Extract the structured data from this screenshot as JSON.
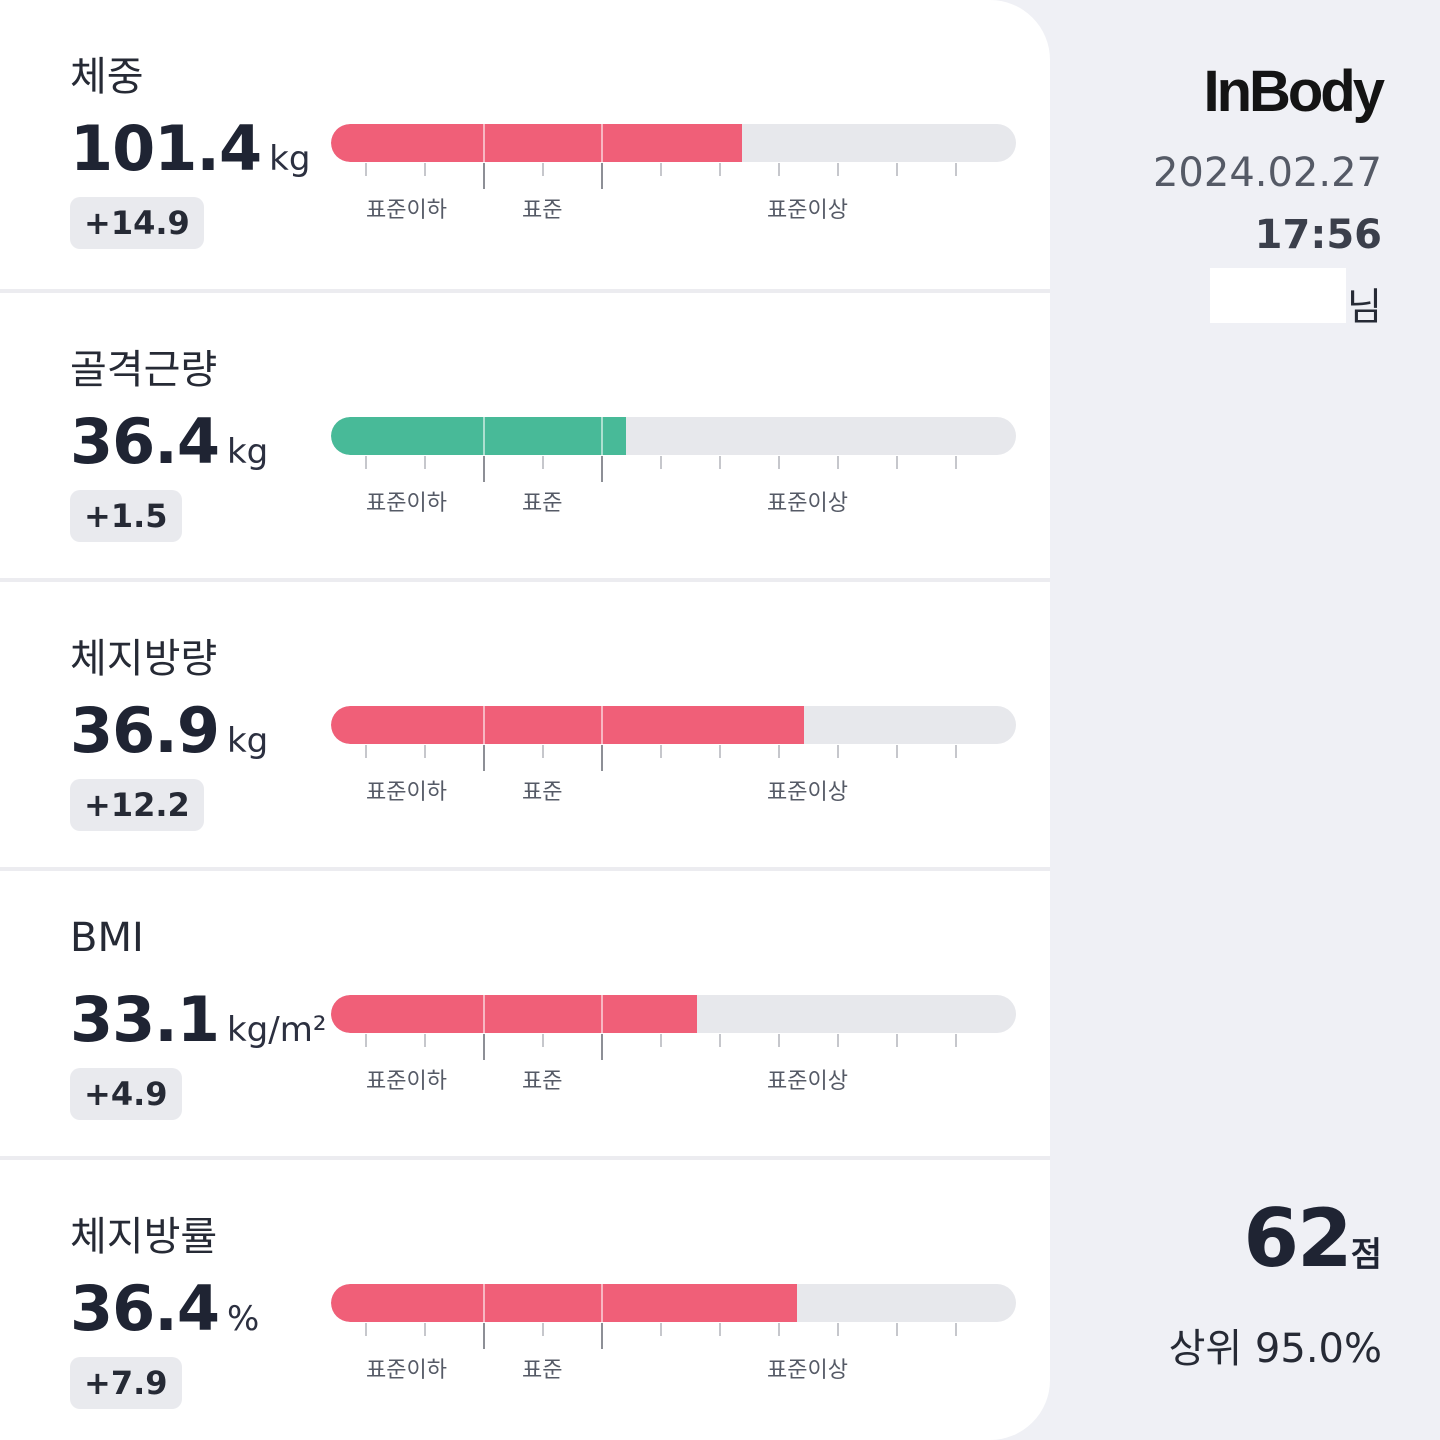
{
  "colors": {
    "over": "#f05f78",
    "normal": "#48ba98",
    "track": "#e7e8ec"
  },
  "scale": {
    "zones": [
      "표준이하",
      "표준",
      "표준이상"
    ]
  },
  "metrics": [
    {
      "title": "체중",
      "value": "101.4",
      "unit": "kg",
      "delta": "+14.9",
      "level": 0.6,
      "status": "over"
    },
    {
      "title": "골격근량",
      "value": "36.4",
      "unit": "kg",
      "delta": "+1.5",
      "level": 0.43,
      "status": "normal"
    },
    {
      "title": "체지방량",
      "value": "36.9",
      "unit": "kg",
      "delta": "+12.2",
      "level": 0.69,
      "status": "over"
    },
    {
      "title": "BMI",
      "value": "33.1",
      "unit": "kg/m²",
      "delta": "+4.9",
      "level": 0.535,
      "status": "over"
    },
    {
      "title": "체지방률",
      "value": "36.4",
      "unit": "%",
      "delta": "+7.9",
      "level": 0.68,
      "status": "over"
    }
  ],
  "sidebar": {
    "brand": "InBody",
    "date": "2024.02.27",
    "time": "17:56",
    "name_suffix": "님",
    "score": "62",
    "score_unit": "점",
    "rank": "상위 95.0%"
  }
}
